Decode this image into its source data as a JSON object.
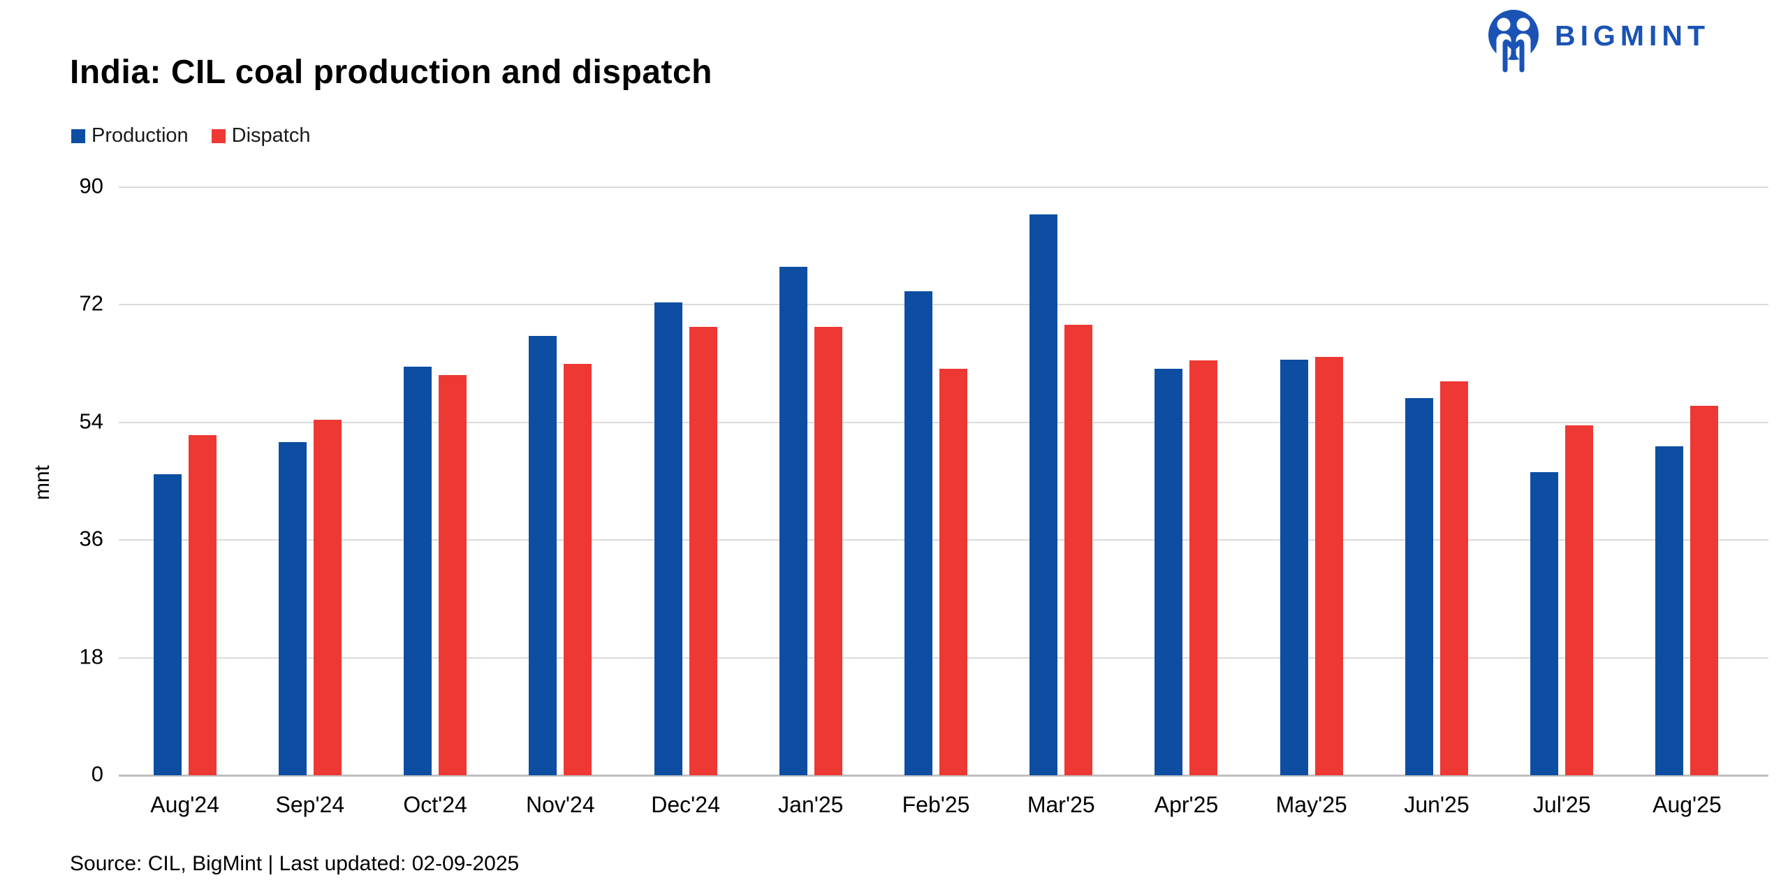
{
  "header": {
    "title": "India: CIL coal production and dispatch",
    "brand": "BIGMINT",
    "brand_color": "#1B53B5"
  },
  "chart_data": {
    "type": "bar",
    "title": "India: CIL coal production and dispatch",
    "categories": [
      "Aug'24",
      "Sep'24",
      "Oct'24",
      "Nov'24",
      "Dec'24",
      "Jan'25",
      "Feb'25",
      "Mar'25",
      "Apr'25",
      "May'25",
      "Jun'25",
      "Jul'25",
      "Aug'25"
    ],
    "series": [
      {
        "name": "Production",
        "color": "#0D4EA2",
        "values": [
          46.1,
          51.0,
          62.5,
          67.2,
          72.4,
          77.8,
          74.1,
          85.8,
          62.2,
          63.6,
          57.7,
          46.4,
          50.3
        ]
      },
      {
        "name": "Dispatch",
        "color": "#EE3833",
        "values": [
          52.1,
          54.4,
          61.3,
          63.0,
          68.6,
          68.6,
          62.2,
          69.0,
          63.5,
          64.0,
          60.3,
          53.6,
          56.6
        ]
      }
    ],
    "xlabel": "",
    "ylabel": "mnt",
    "ylim": [
      0,
      90
    ],
    "yticks": [
      0,
      18,
      36,
      54,
      72,
      90
    ],
    "grid": true,
    "grid_color": "#DBDBDB",
    "axis_line_color": "#BFBFBF",
    "legend_position": "top-left"
  },
  "footer": {
    "source_text": "Source: CIL, BigMint | Last updated: 02-09-2025"
  }
}
